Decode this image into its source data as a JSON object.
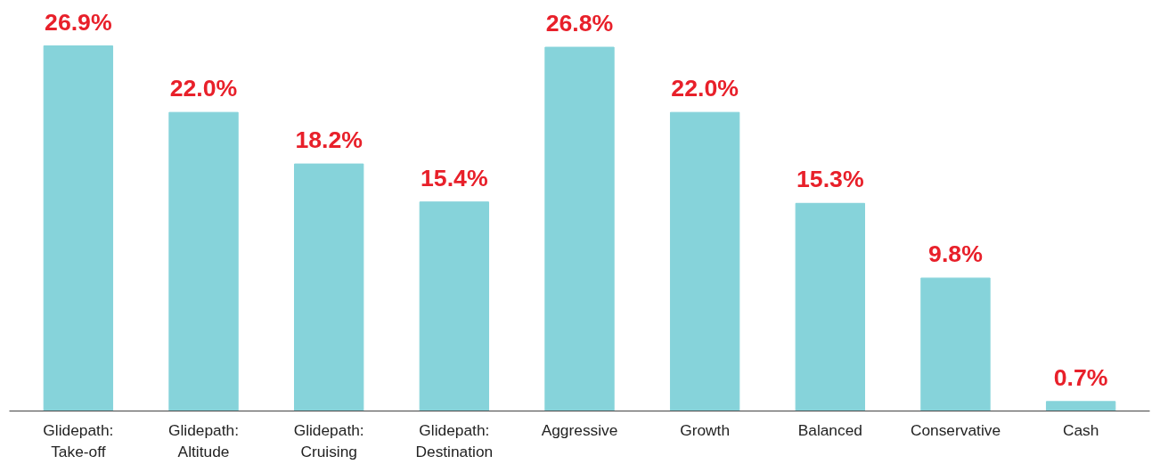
{
  "chart_data": {
    "type": "bar",
    "categories": [
      "Glidepath:\nTake-off",
      "Glidepath:\nAltitude",
      "Glidepath:\nCruising",
      "Glidepath:\nDestination",
      "Aggressive",
      "Growth",
      "Balanced",
      "Conservative",
      "Cash"
    ],
    "values": [
      26.9,
      22.0,
      18.2,
      15.4,
      26.8,
      22.0,
      15.3,
      9.8,
      0.7
    ],
    "value_labels": [
      "26.9%",
      "22.0%",
      "18.2%",
      "15.4%",
      "26.8%",
      "22.0%",
      "15.3%",
      "9.8%",
      "0.7%"
    ],
    "color": "#86d3da",
    "tick_labels": "x",
    "grid": false
  }
}
